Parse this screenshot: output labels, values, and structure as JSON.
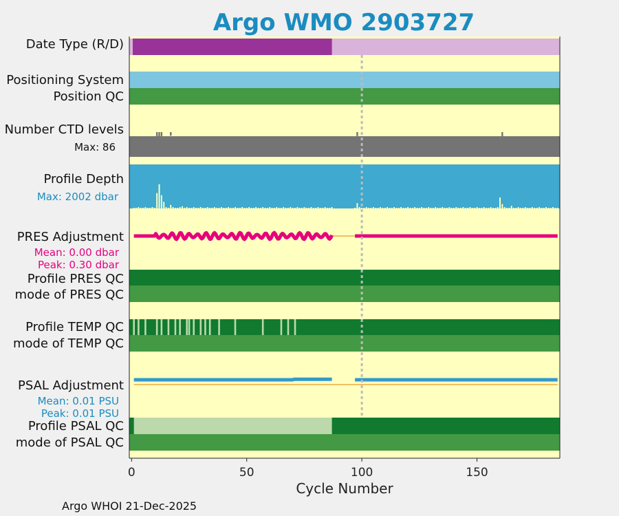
{
  "title": "Argo WMO 2903727",
  "footer": "Argo WHOI 21-Dec-2025",
  "colors": {
    "title": "#1a8cc0",
    "panel_bg": "#ffffc0",
    "dmode_dark": "#993399",
    "dmode_light": "#d9b3d9",
    "pos_sys": "#7ec6e0",
    "qc_good": "#449944",
    "qc_dark": "#117a2e",
    "qc_light": "#bcd9ab",
    "ctd_gray": "#747474",
    "depth_blue": "#3fa9d0",
    "pres_adj": "#e6007e",
    "psal_adj": "#3399cc",
    "zero_line": "#f0c060",
    "stat_pres": "#e6007e",
    "stat_psal": "#1a8cc0"
  },
  "chart_data": {
    "type": "table",
    "xlabel": "Cycle Number",
    "xlim": [
      -1,
      186
    ],
    "xticks": [
      0,
      50,
      100,
      150
    ],
    "last_cycle": 186,
    "marker_cycle": 100,
    "rows": [
      {
        "label": "Date Type (R/D)",
        "type": "dmode",
        "delayed_until": 87
      },
      {
        "label": "Positioning System",
        "type": "possys"
      },
      {
        "label": "Position QC",
        "type": "qcgood"
      },
      {
        "label": "Number CTD levels",
        "stat": "Max: 86",
        "type": "ctd",
        "dips": [
          [
            11,
            0.4
          ],
          [
            12,
            0.9
          ],
          [
            13,
            0.5
          ],
          [
            17,
            0.2
          ],
          [
            98,
            0.3
          ],
          [
            161,
            0.4
          ]
        ]
      },
      {
        "label": "Profile Depth",
        "stat": "Max: 2002 dbar",
        "type": "depth",
        "spikes": [
          [
            11,
            0.35
          ],
          [
            12,
            0.55
          ],
          [
            13,
            0.3
          ],
          [
            14,
            0.15
          ],
          [
            17,
            0.08
          ],
          [
            22,
            0.05
          ],
          [
            98,
            0.12
          ],
          [
            160,
            0.25
          ],
          [
            161,
            0.1
          ],
          [
            165,
            0.06
          ]
        ]
      },
      {
        "label": "PRES Adjustment",
        "stat1": "Mean: 0.00 dbar",
        "stat2": "Peak: 0.30 dbar",
        "type": "presadj",
        "segments": [
          [
            1,
            87
          ],
          [
            97,
            185
          ]
        ]
      },
      {
        "label": "Profile PRES QC",
        "type": "qcdark"
      },
      {
        "label": "mode of PRES QC",
        "type": "qcgood"
      },
      {
        "label": "Profile TEMP QC",
        "type": "tempqc",
        "light_cycles": [
          1,
          3,
          6,
          11,
          13,
          16,
          19,
          21,
          24,
          25,
          27,
          30,
          32,
          34,
          38,
          45,
          57,
          65,
          68,
          71
        ]
      },
      {
        "label": "mode of TEMP QC",
        "type": "qcgood"
      },
      {
        "label": "PSAL Adjustment",
        "stat1": "Mean: 0.01 PSU",
        "stat2": "Peak: 0.01 PSU",
        "type": "psaladj",
        "segments": [
          [
            1,
            87
          ],
          [
            97,
            185
          ]
        ]
      },
      {
        "label": "Profile PSAL QC",
        "type": "psalqc",
        "light_until": 87
      },
      {
        "label": "mode of PSAL QC",
        "type": "qcgood"
      }
    ]
  }
}
